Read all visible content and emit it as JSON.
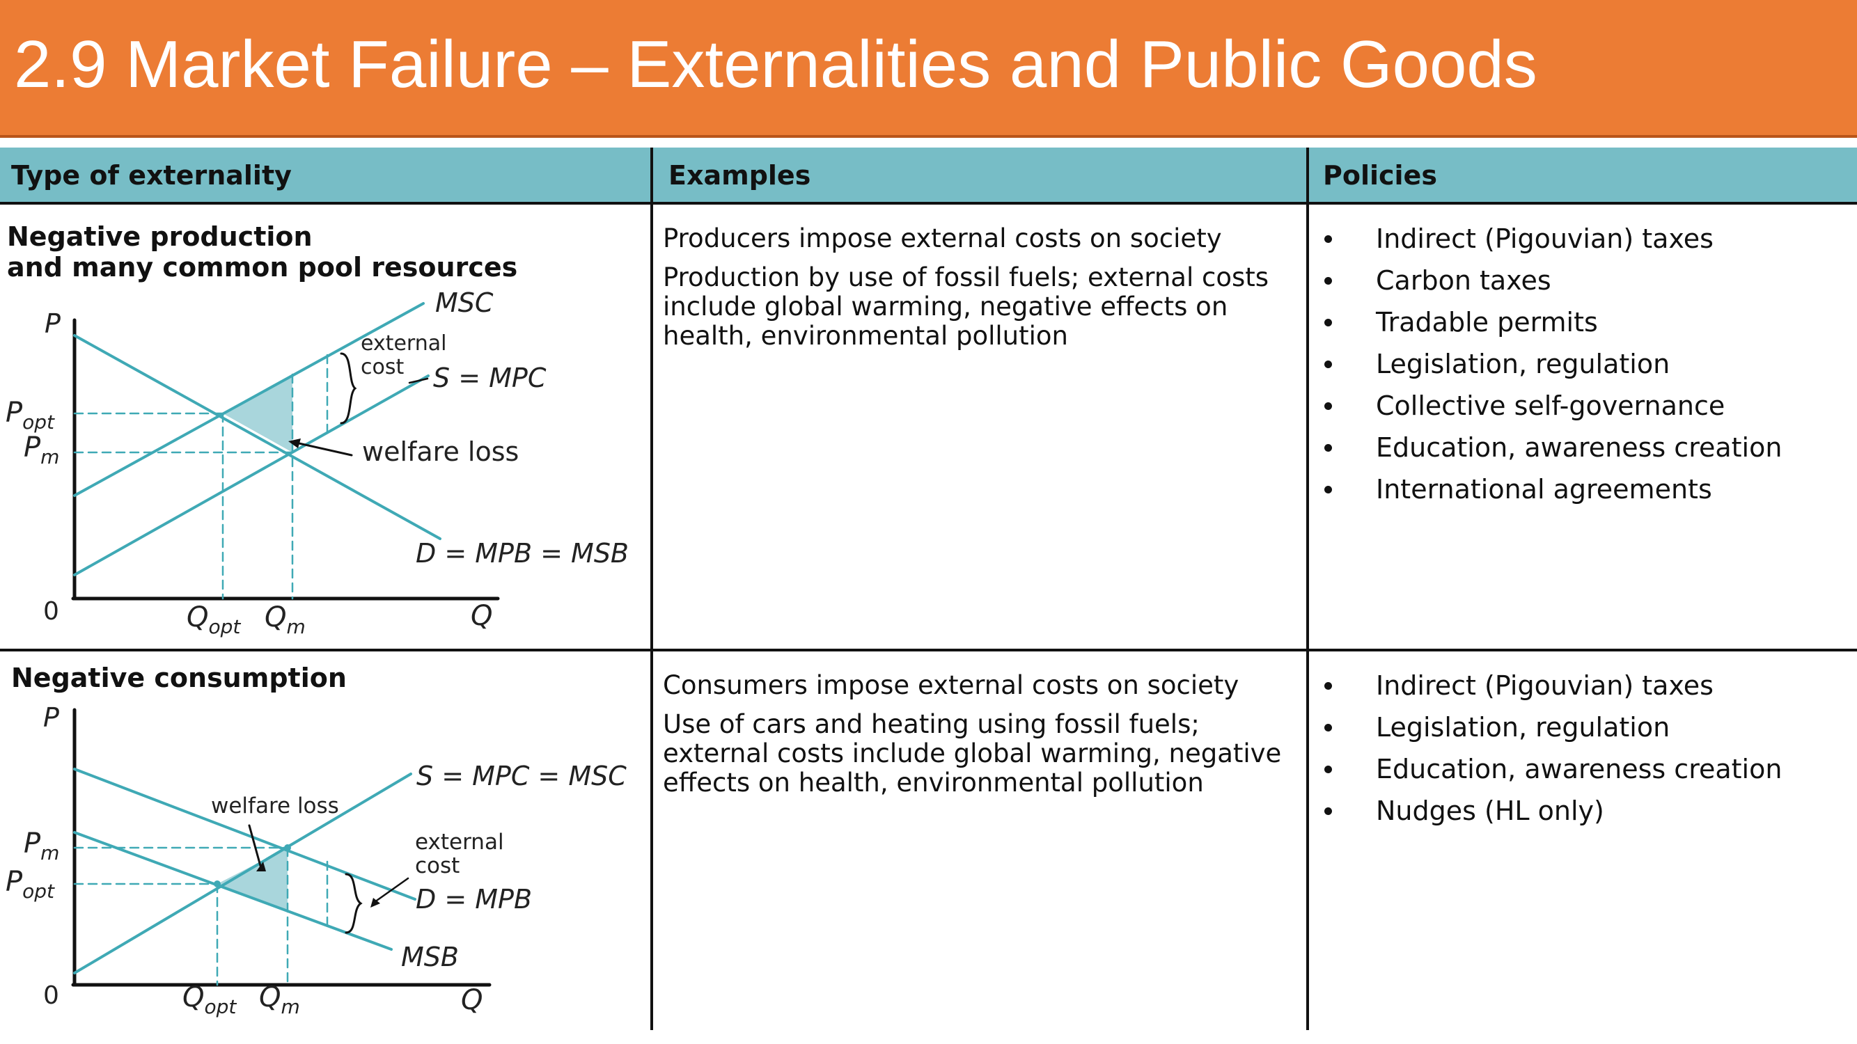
{
  "slide": {
    "title": "2.9 Market Failure – Externalities and Public Goods"
  },
  "table": {
    "headers": [
      "Type of externality",
      "Examples",
      "Policies"
    ],
    "rows": [
      {
        "type_lines": [
          "Negative production",
          "and many common pool resources"
        ],
        "examples": [
          "Producers impose external costs on society",
          "Production by use of fossil fuels; external costs include global warming, negative effects on health, environmental pollution"
        ],
        "policies": [
          "Indirect (Pigouvian) taxes",
          "Carbon taxes",
          "Tradable permits",
          "Legislation, regulation",
          "Collective self-governance",
          "Education, awareness creation",
          "International agreements"
        ],
        "diagram": {
          "y_axis": "P",
          "x_axis": "Q",
          "origin": "0",
          "curve_msc": "MSC",
          "curve_supply": "S = MPC",
          "curve_demand": "D = MPB = MSB",
          "label_external_cost": [
            "external",
            "cost"
          ],
          "label_welfare_loss": "welfare loss",
          "price_opt": "P",
          "price_opt_sub": "opt",
          "price_m": "P",
          "price_m_sub": "m",
          "qty_opt": "Q",
          "qty_opt_sub": "opt",
          "qty_m": "Q",
          "qty_m_sub": "m"
        }
      },
      {
        "type_lines": [
          "Negative consumption"
        ],
        "examples": [
          "Consumers impose external costs on society",
          "Use of cars and heating using fossil fuels; external costs include global warming, negative effects on health, environmental pollution"
        ],
        "policies": [
          "Indirect (Pigouvian) taxes",
          "Legislation, regulation",
          "Education, awareness creation",
          "Nudges (HL only)"
        ],
        "diagram": {
          "y_axis": "P",
          "x_axis": "Q",
          "origin": "0",
          "curve_supply": "S = MPC = MSC",
          "curve_demand": "D = MPB",
          "curve_msb": "MSB",
          "label_external_cost": [
            "external",
            "cost"
          ],
          "label_welfare_loss": "welfare loss",
          "price_m": "P",
          "price_m_sub": "m",
          "price_opt": "P",
          "price_opt_sub": "opt",
          "qty_opt": "Q",
          "qty_opt_sub": "opt",
          "qty_m": "Q",
          "qty_m_sub": "m"
        }
      }
    ]
  },
  "colors": {
    "banner": "#EC7C34",
    "header": "#77BDC6",
    "curve": "#3FA9B5",
    "shade": "#A9D6DC"
  }
}
